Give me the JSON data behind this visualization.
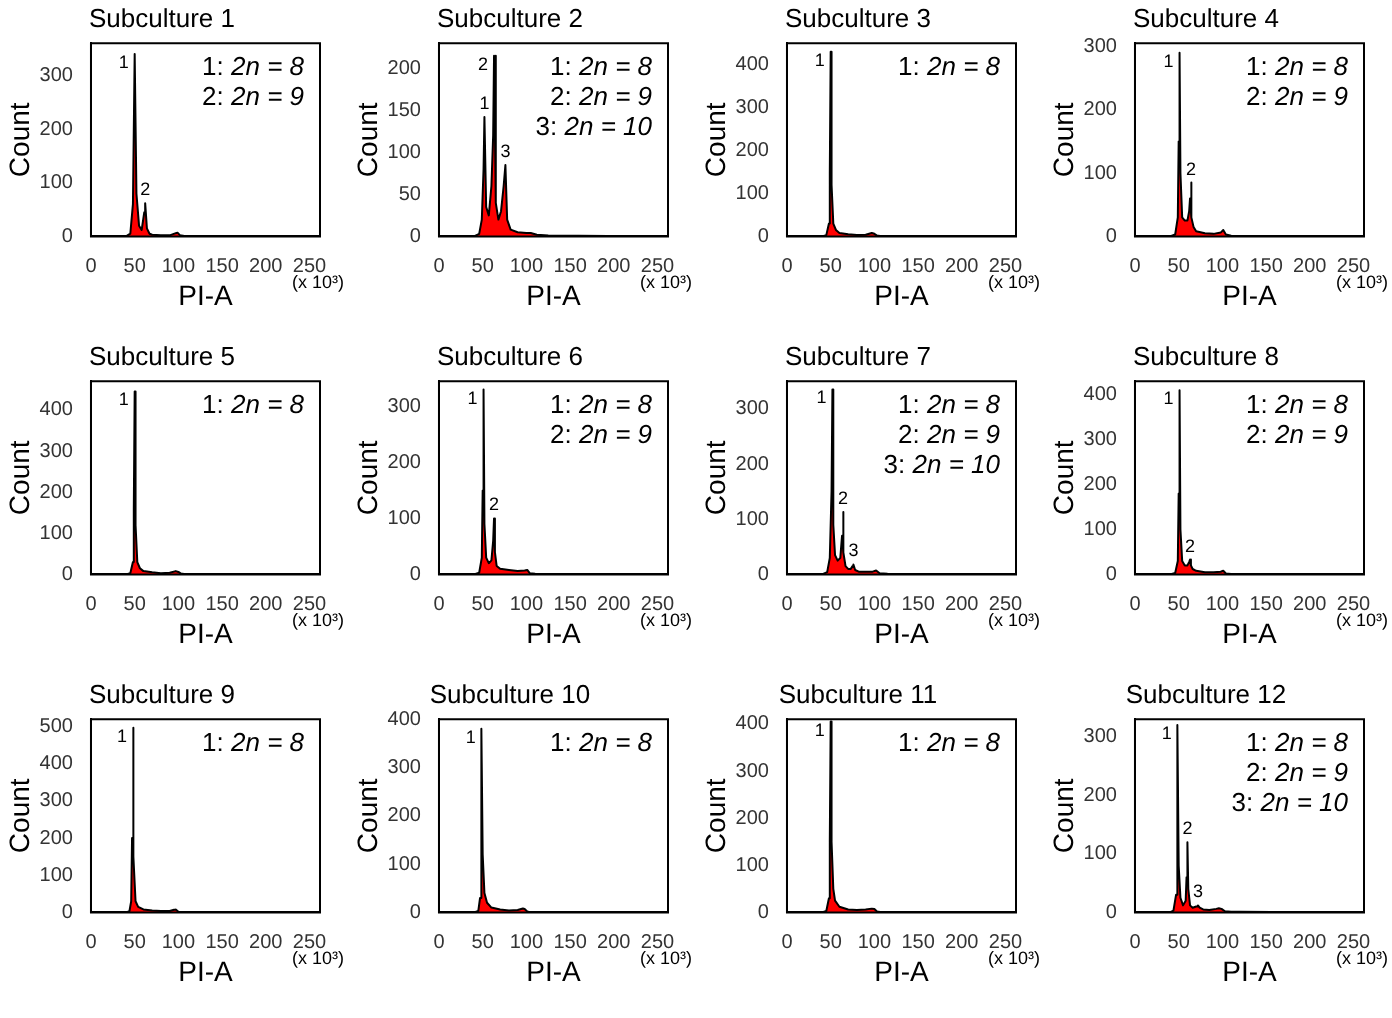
{
  "chart_data": [
    {
      "type": "area",
      "title": "Subculture 1",
      "xlabel": "PI-A",
      "ylabel": "Count",
      "color": "#ff0000",
      "xlim": [
        0,
        262
      ],
      "xticks": [
        0,
        50,
        100,
        150,
        200,
        250
      ],
      "ylim": [
        0,
        360
      ],
      "yticks": [
        0,
        100,
        200,
        300
      ],
      "x": [
        0,
        40,
        45,
        48,
        50,
        52,
        55,
        58,
        61,
        62,
        64,
        67,
        70,
        80,
        90,
        97,
        99,
        102,
        110,
        262
      ],
      "values": [
        0,
        0,
        5,
        60,
        340,
        80,
        20,
        12,
        45,
        62,
        15,
        5,
        3,
        2,
        2,
        6,
        7,
        2,
        0,
        0
      ],
      "annotations": [
        {
          "text": "1",
          "x": 50,
          "y": 340
        },
        {
          "text": "2",
          "x": 62,
          "y": 62
        },
        "1: 2n = 8",
        "2: 2n = 9",
        "(x 10³)"
      ]
    },
    {
      "type": "area",
      "title": "Subculture 2",
      "xlabel": "PI-A",
      "ylabel": "Count",
      "color": "#ff0000",
      "xlim": [
        0,
        262
      ],
      "xticks": [
        0,
        50,
        100,
        150,
        200,
        250
      ],
      "ylim": [
        0,
        230
      ],
      "yticks": [
        0,
        50,
        100,
        150,
        200
      ],
      "x": [
        0,
        40,
        46,
        49,
        51,
        52,
        54,
        57,
        60,
        62,
        63,
        65,
        68,
        71,
        74,
        76,
        78,
        82,
        90,
        100,
        105,
        112,
        125,
        262
      ],
      "values": [
        0,
        0,
        3,
        20,
        80,
        142,
        35,
        25,
        60,
        120,
        215,
        40,
        20,
        30,
        60,
        85,
        20,
        8,
        5,
        4,
        4,
        2,
        1,
        0
      ],
      "annotations": [
        {
          "text": "1",
          "x": 52,
          "y": 142
        },
        {
          "text": "2",
          "x": 63,
          "y": 215
        },
        {
          "text": "3",
          "x": 76,
          "y": 85
        },
        "1: 2n = 8",
        "2: 2n = 9",
        "3: 2n = 10",
        "(x 10³)"
      ]
    },
    {
      "type": "area",
      "title": "Subculture 3",
      "xlabel": "PI-A",
      "ylabel": "Count",
      "color": "#ff0000",
      "xlim": [
        0,
        262
      ],
      "xticks": [
        0,
        50,
        100,
        150,
        200,
        250
      ],
      "ylim": [
        0,
        450
      ],
      "yticks": [
        0,
        100,
        200,
        300,
        400
      ],
      "x": [
        0,
        40,
        45,
        48,
        49,
        50,
        51,
        53,
        56,
        60,
        70,
        80,
        90,
        97,
        100,
        103,
        110,
        262
      ],
      "values": [
        0,
        0,
        3,
        30,
        150,
        430,
        120,
        30,
        15,
        8,
        5,
        3,
        4,
        8,
        6,
        2,
        0,
        0
      ],
      "annotations": [
        {
          "text": "1",
          "x": 50,
          "y": 430
        },
        "1: 2n = 8",
        "(x 10³)"
      ]
    },
    {
      "type": "area",
      "title": "Subculture 4",
      "xlabel": "PI-A",
      "ylabel": "Count",
      "color": "#ff0000",
      "xlim": [
        0,
        262
      ],
      "xticks": [
        0,
        50,
        100,
        150,
        200,
        250
      ],
      "ylim": [
        0,
        305
      ],
      "yticks": [
        0,
        100,
        200,
        300
      ],
      "x": [
        0,
        40,
        46,
        49,
        50,
        51,
        52,
        54,
        57,
        60,
        62,
        63,
        64,
        65,
        67,
        70,
        80,
        90,
        98,
        101,
        104,
        110,
        262
      ],
      "values": [
        0,
        0,
        3,
        30,
        150,
        290,
        100,
        30,
        25,
        25,
        40,
        60,
        85,
        30,
        15,
        8,
        5,
        4,
        6,
        10,
        3,
        1,
        0
      ],
      "annotations": [
        {
          "text": "1",
          "x": 51,
          "y": 290
        },
        {
          "text": "2",
          "x": 64,
          "y": 85
        },
        "1: 2n = 8",
        "2: 2n = 9",
        "(x 10³)"
      ]
    },
    {
      "type": "area",
      "title": "Subculture 5",
      "xlabel": "PI-A",
      "ylabel": "Count",
      "color": "#ff0000",
      "xlim": [
        0,
        262
      ],
      "xticks": [
        0,
        50,
        100,
        150,
        200,
        250
      ],
      "ylim": [
        0,
        470
      ],
      "yticks": [
        0,
        100,
        200,
        300,
        400
      ],
      "x": [
        0,
        40,
        45,
        48,
        49,
        50,
        51,
        53,
        56,
        60,
        70,
        80,
        90,
        97,
        100,
        103,
        110,
        262
      ],
      "values": [
        0,
        0,
        3,
        30,
        160,
        445,
        120,
        30,
        15,
        8,
        5,
        3,
        4,
        8,
        6,
        2,
        0,
        0
      ],
      "annotations": [
        {
          "text": "1",
          "x": 50,
          "y": 445
        },
        "1: 2n = 8",
        "(x 10³)"
      ]
    },
    {
      "type": "area",
      "title": "Subculture 6",
      "xlabel": "PI-A",
      "ylabel": "Count",
      "color": "#ff0000",
      "xlim": [
        0,
        262
      ],
      "xticks": [
        0,
        50,
        100,
        150,
        200,
        250
      ],
      "ylim": [
        0,
        345
      ],
      "yticks": [
        0,
        100,
        200,
        300
      ],
      "x": [
        0,
        40,
        46,
        49,
        50,
        51,
        52,
        54,
        57,
        60,
        62,
        63,
        64,
        66,
        70,
        80,
        90,
        98,
        101,
        104,
        110,
        262
      ],
      "values": [
        0,
        0,
        3,
        30,
        150,
        330,
        90,
        30,
        20,
        25,
        60,
        100,
        40,
        15,
        10,
        8,
        6,
        7,
        8,
        2,
        1,
        0
      ],
      "annotations": [
        {
          "text": "1",
          "x": 51,
          "y": 330
        },
        {
          "text": "2",
          "x": 63,
          "y": 100
        },
        "1: 2n = 8",
        "2: 2n = 9",
        "(x 10³)"
      ]
    },
    {
      "type": "area",
      "title": "Subculture 7",
      "xlabel": "PI-A",
      "ylabel": "Count",
      "color": "#ff0000",
      "xlim": [
        0,
        262
      ],
      "xticks": [
        0,
        50,
        100,
        150,
        200,
        250
      ],
      "ylim": [
        0,
        350
      ],
      "yticks": [
        0,
        100,
        200,
        300
      ],
      "x": [
        0,
        40,
        46,
        49,
        51,
        52,
        53,
        55,
        58,
        61,
        63,
        64,
        65,
        67,
        70,
        73,
        75,
        76,
        78,
        82,
        90,
        98,
        102,
        106,
        115,
        262
      ],
      "values": [
        0,
        0,
        4,
        30,
        150,
        335,
        90,
        35,
        25,
        30,
        70,
        113,
        40,
        15,
        10,
        10,
        15,
        18,
        8,
        5,
        5,
        5,
        7,
        2,
        1,
        0
      ],
      "annotations": [
        {
          "text": "1",
          "x": 52,
          "y": 335
        },
        {
          "text": "2",
          "x": 64,
          "y": 113
        },
        {
          "text": "3",
          "x": 76,
          "y": 18
        },
        "1: 2n = 8",
        "2: 2n = 9",
        "3: 2n = 10",
        "(x 10³)"
      ]
    },
    {
      "type": "area",
      "title": "Subculture 8",
      "xlabel": "PI-A",
      "ylabel": "Count",
      "color": "#ff0000",
      "xlim": [
        0,
        262
      ],
      "xticks": [
        0,
        50,
        100,
        150,
        200,
        250
      ],
      "ylim": [
        0,
        430
      ],
      "yticks": [
        0,
        100,
        200,
        300,
        400
      ],
      "x": [
        0,
        40,
        46,
        49,
        50,
        51,
        52,
        54,
        57,
        60,
        62,
        63,
        64,
        66,
        70,
        80,
        90,
        98,
        101,
        104,
        110,
        262
      ],
      "values": [
        0,
        0,
        3,
        30,
        180,
        410,
        100,
        30,
        20,
        20,
        28,
        33,
        20,
        12,
        8,
        5,
        5,
        6,
        8,
        2,
        1,
        0
      ],
      "annotations": [
        {
          "text": "1",
          "x": 51,
          "y": 410
        },
        {
          "text": "2",
          "x": 63,
          "y": 33
        },
        "1: 2n = 8",
        "2: 2n = 9",
        "(x 10³)"
      ]
    },
    {
      "type": "area",
      "title": "Subculture 9",
      "xlabel": "PI-A",
      "ylabel": "Count",
      "color": "#ff0000",
      "xlim": [
        0,
        262
      ],
      "xticks": [
        0,
        50,
        100,
        150,
        200,
        250
      ],
      "ylim": [
        0,
        520
      ],
      "yticks": [
        0,
        100,
        200,
        300,
        400,
        500
      ],
      "x": [
        0,
        40,
        44,
        46,
        47,
        48,
        49,
        51,
        54,
        60,
        70,
        80,
        90,
        95,
        97,
        100,
        105,
        262
      ],
      "values": [
        0,
        0,
        3,
        30,
        200,
        497,
        150,
        30,
        15,
        8,
        5,
        4,
        4,
        7,
        8,
        2,
        0,
        0
      ],
      "annotations": [
        {
          "text": "1",
          "x": 48,
          "y": 497
        },
        "1: 2n = 8",
        "(x 10³)"
      ]
    },
    {
      "type": "area",
      "title": "Subculture 10",
      "xlabel": "PI-A",
      "ylabel": "Count",
      "color": "#ff0000",
      "xlim": [
        0,
        262
      ],
      "xticks": [
        0,
        50,
        100,
        150,
        200,
        250
      ],
      "ylim": [
        0,
        400
      ],
      "yticks": [
        0,
        100,
        200,
        300,
        400
      ],
      "x": [
        0,
        40,
        45,
        47,
        48,
        49,
        50,
        52,
        55,
        60,
        70,
        80,
        90,
        96,
        98,
        101,
        105,
        262
      ],
      "values": [
        0,
        0,
        3,
        30,
        35,
        380,
        120,
        40,
        20,
        10,
        6,
        4,
        5,
        8,
        7,
        2,
        0,
        0
      ],
      "annotations": [
        {
          "text": "1",
          "x": 49,
          "y": 380
        },
        "1: 2n = 8",
        "(x 10³)"
      ]
    },
    {
      "type": "area",
      "title": "Subculture 11",
      "xlabel": "PI-A",
      "ylabel": "Count",
      "color": "#ff0000",
      "xlim": [
        0,
        262
      ],
      "xticks": [
        0,
        50,
        100,
        150,
        200,
        250
      ],
      "ylim": [
        0,
        410
      ],
      "yticks": [
        0,
        100,
        200,
        300,
        400
      ],
      "x": [
        0,
        40,
        45,
        48,
        49,
        50,
        51,
        53,
        55,
        60,
        70,
        80,
        90,
        97,
        100,
        103,
        110,
        262
      ],
      "values": [
        0,
        0,
        3,
        30,
        150,
        405,
        150,
        50,
        25,
        12,
        6,
        5,
        6,
        8,
        7,
        2,
        0,
        0
      ],
      "annotations": [
        {
          "text": "1",
          "x": 50,
          "y": 405
        },
        "1: 2n = 8",
        "(x 10³)"
      ]
    },
    {
      "type": "area",
      "title": "Subculture 12",
      "xlabel": "PI-A",
      "ylabel": "Count",
      "color": "#ff0000",
      "xlim": [
        0,
        262
      ],
      "xticks": [
        0,
        50,
        100,
        150,
        200,
        250
      ],
      "ylim": [
        0,
        330
      ],
      "yticks": [
        0,
        100,
        200,
        300
      ],
      "x": [
        0,
        40,
        44,
        47,
        48,
        49,
        50,
        52,
        55,
        58,
        59,
        60,
        61,
        63,
        66,
        70,
        72,
        74,
        78,
        85,
        93,
        96,
        99,
        103,
        110,
        120,
        262
      ],
      "values": [
        0,
        0,
        3,
        30,
        35,
        320,
        80,
        25,
        12,
        20,
        60,
        120,
        40,
        12,
        8,
        10,
        12,
        8,
        5,
        4,
        6,
        7,
        6,
        2,
        1,
        1,
        0
      ],
      "annotations": [
        {
          "text": "1",
          "x": 49,
          "y": 320
        },
        {
          "text": "2",
          "x": 60,
          "y": 120
        },
        {
          "text": "3",
          "x": 72,
          "y": 12
        },
        "1: 2n = 8",
        "2: 2n = 9",
        "3: 2n = 10",
        "(x 10³)"
      ]
    }
  ]
}
